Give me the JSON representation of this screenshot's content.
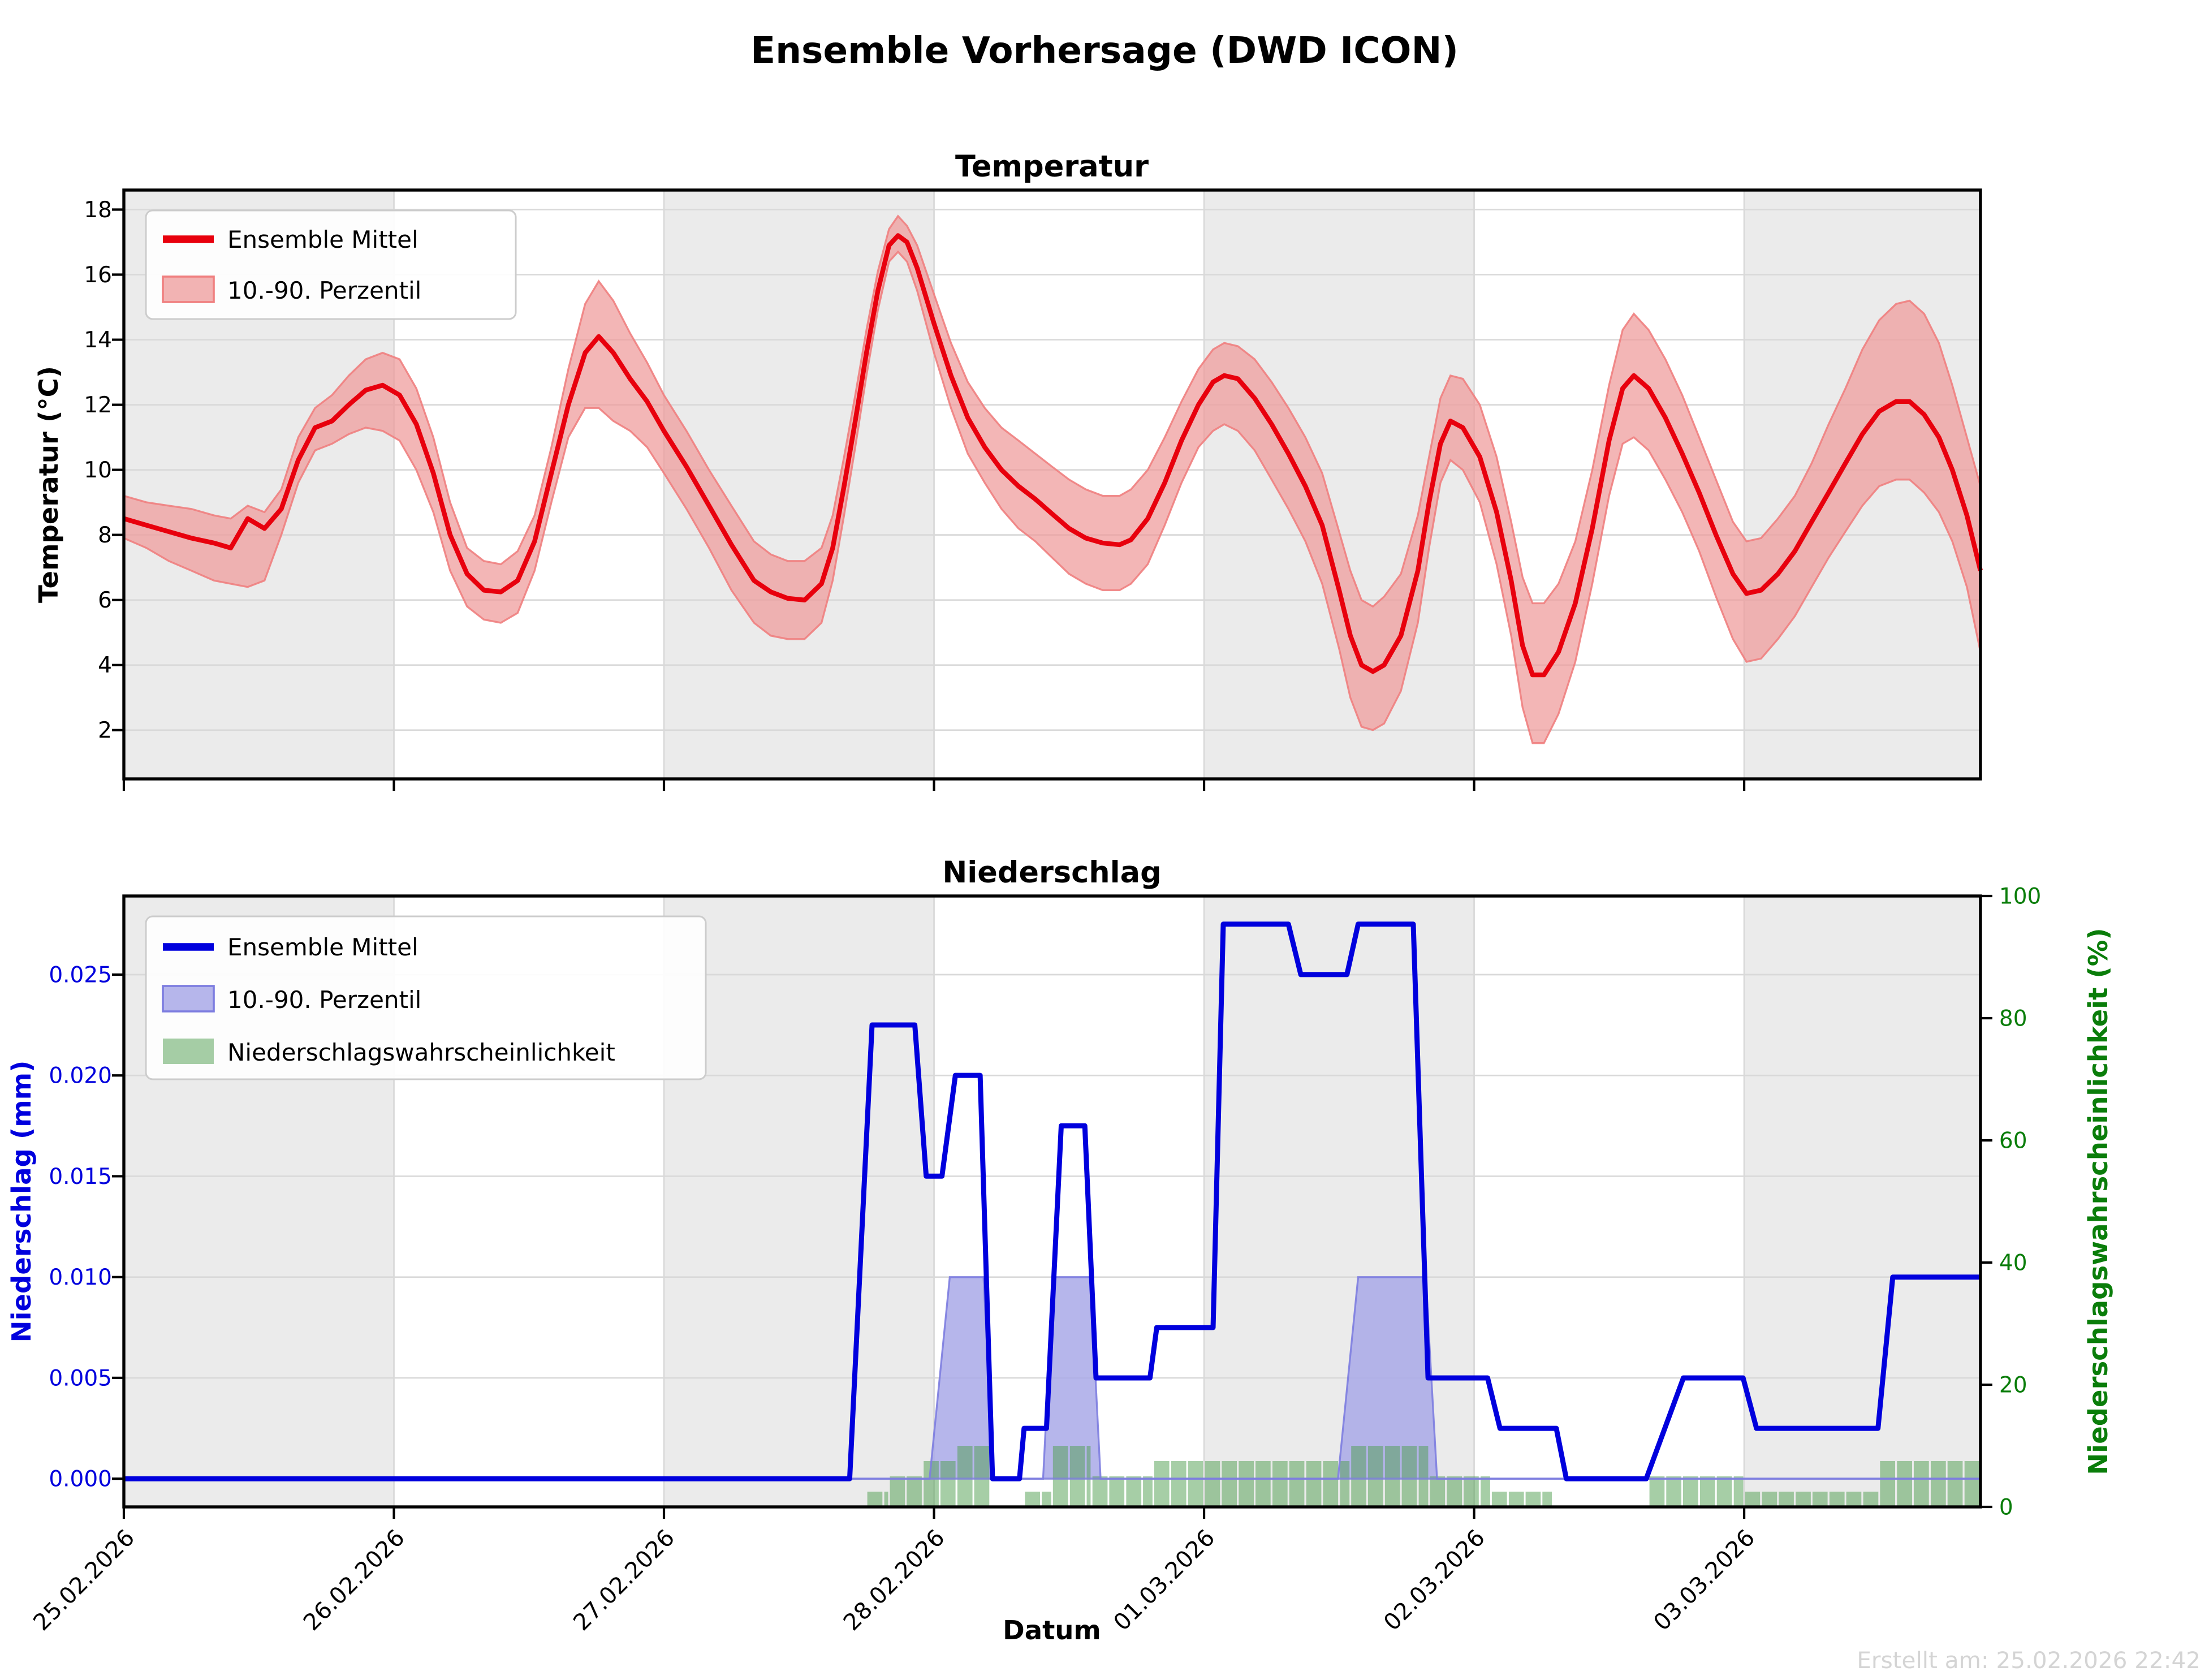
{
  "page_title": "Ensemble Vorhersage (DWD ICON)",
  "footer_note": "Erstellt am: 25.02.2026 22:42",
  "x_axis": {
    "label": "Datum",
    "tick_labels": [
      "25.02.2026",
      "26.02.2026",
      "27.02.2026",
      "28.02.2026",
      "01.03.2026",
      "02.03.2026",
      "03.03.2026"
    ],
    "hours_total": 165,
    "hours_per_day": 24,
    "shaded_day_indices": [
      0,
      2,
      4,
      6
    ],
    "shade_color": "#ebebeb",
    "grid_color": "#d9d9d9"
  },
  "chart_data": [
    {
      "type": "line",
      "title": "Temperatur",
      "ylabel": "Temperatur (°C)",
      "yticks": [
        2,
        4,
        6,
        8,
        10,
        12,
        14,
        16,
        18
      ],
      "ylim": [
        0.5,
        18.6
      ],
      "legend": [
        "Ensemble Mittel",
        "10.-90. Perzentil"
      ],
      "colors": {
        "line": "#e8000d",
        "band": "#ee9a9a",
        "band_edge": "#f08080"
      },
      "points": [
        [
          0,
          8.5,
          7.9,
          9.2
        ],
        [
          2,
          8.3,
          7.6,
          9.0
        ],
        [
          4,
          8.1,
          7.2,
          8.9
        ],
        [
          6,
          7.9,
          6.9,
          8.8
        ],
        [
          8,
          7.75,
          6.6,
          8.6
        ],
        [
          9.5,
          7.6,
          6.5,
          8.5
        ],
        [
          11,
          8.5,
          6.4,
          8.9
        ],
        [
          12.5,
          8.2,
          6.6,
          8.7
        ],
        [
          14,
          8.8,
          8.0,
          9.4
        ],
        [
          15.5,
          10.3,
          9.6,
          11.0
        ],
        [
          17,
          11.3,
          10.6,
          11.9
        ],
        [
          18.5,
          11.5,
          10.8,
          12.3
        ],
        [
          20,
          12.0,
          11.1,
          12.9
        ],
        [
          21.5,
          12.45,
          11.3,
          13.4
        ],
        [
          23,
          12.6,
          11.2,
          13.6
        ],
        [
          24.5,
          12.3,
          10.9,
          13.4
        ],
        [
          26,
          11.4,
          10.0,
          12.5
        ],
        [
          27.5,
          9.9,
          8.7,
          11.0
        ],
        [
          29,
          8.0,
          6.9,
          9.0
        ],
        [
          30.5,
          6.8,
          5.8,
          7.6
        ],
        [
          32,
          6.3,
          5.4,
          7.2
        ],
        [
          33.5,
          6.25,
          5.3,
          7.1
        ],
        [
          35,
          6.6,
          5.6,
          7.5
        ],
        [
          36.5,
          7.8,
          6.9,
          8.6
        ],
        [
          38,
          9.9,
          9.0,
          10.7
        ],
        [
          39.5,
          12.0,
          11.0,
          13.1
        ],
        [
          41,
          13.6,
          11.9,
          15.1
        ],
        [
          42.2,
          14.1,
          11.9,
          15.8
        ],
        [
          43.5,
          13.6,
          11.5,
          15.2
        ],
        [
          45,
          12.8,
          11.2,
          14.2
        ],
        [
          46.5,
          12.1,
          10.7,
          13.3
        ],
        [
          48,
          11.2,
          9.9,
          12.3
        ],
        [
          50,
          10.1,
          8.8,
          11.2
        ],
        [
          52,
          8.9,
          7.6,
          10.0
        ],
        [
          54,
          7.7,
          6.3,
          8.9
        ],
        [
          56,
          6.6,
          5.3,
          7.8
        ],
        [
          57.5,
          6.25,
          4.9,
          7.4
        ],
        [
          59,
          6.05,
          4.8,
          7.2
        ],
        [
          60.5,
          6.0,
          4.8,
          7.2
        ],
        [
          62,
          6.5,
          5.3,
          7.6
        ],
        [
          63,
          7.6,
          6.6,
          8.6
        ],
        [
          64,
          9.5,
          8.6,
          10.4
        ],
        [
          65,
          11.5,
          10.7,
          12.3
        ],
        [
          66,
          13.6,
          12.9,
          14.3
        ],
        [
          67,
          15.5,
          14.9,
          16.1
        ],
        [
          68,
          16.9,
          16.4,
          17.4
        ],
        [
          68.8,
          17.2,
          16.7,
          17.8
        ],
        [
          69.6,
          17.0,
          16.4,
          17.5
        ],
        [
          70.5,
          16.2,
          15.5,
          16.9
        ],
        [
          72,
          14.5,
          13.6,
          15.4
        ],
        [
          73.5,
          12.9,
          11.9,
          13.9
        ],
        [
          75,
          11.6,
          10.5,
          12.7
        ],
        [
          76.5,
          10.7,
          9.6,
          11.9
        ],
        [
          78,
          10.0,
          8.8,
          11.3
        ],
        [
          79.5,
          9.5,
          8.2,
          10.9
        ],
        [
          81,
          9.1,
          7.8,
          10.5
        ],
        [
          82.5,
          8.65,
          7.3,
          10.1
        ],
        [
          84,
          8.2,
          6.8,
          9.7
        ],
        [
          85.5,
          7.9,
          6.5,
          9.4
        ],
        [
          87,
          7.75,
          6.3,
          9.2
        ],
        [
          88.5,
          7.7,
          6.3,
          9.2
        ],
        [
          89.5,
          7.85,
          6.5,
          9.4
        ],
        [
          91,
          8.5,
          7.1,
          10.0
        ],
        [
          92.5,
          9.6,
          8.3,
          11.0
        ],
        [
          94,
          10.9,
          9.6,
          12.1
        ],
        [
          95.5,
          12.0,
          10.7,
          13.1
        ],
        [
          96.8,
          12.7,
          11.2,
          13.7
        ],
        [
          97.8,
          12.9,
          11.4,
          13.9
        ],
        [
          99,
          12.8,
          11.2,
          13.8
        ],
        [
          100.5,
          12.2,
          10.6,
          13.4
        ],
        [
          102,
          11.4,
          9.7,
          12.7
        ],
        [
          103.5,
          10.5,
          8.8,
          11.9
        ],
        [
          105,
          9.5,
          7.8,
          11.0
        ],
        [
          106.5,
          8.3,
          6.5,
          9.9
        ],
        [
          108,
          6.3,
          4.5,
          8.1
        ],
        [
          109,
          4.9,
          3.0,
          6.9
        ],
        [
          110,
          4.0,
          2.1,
          6.0
        ],
        [
          111,
          3.8,
          2.0,
          5.8
        ],
        [
          112,
          4.0,
          2.2,
          6.1
        ],
        [
          113.5,
          4.9,
          3.2,
          6.8
        ],
        [
          115,
          6.9,
          5.3,
          8.6
        ],
        [
          116,
          9.0,
          7.6,
          10.4
        ],
        [
          117,
          10.8,
          9.6,
          12.2
        ],
        [
          117.9,
          11.5,
          10.3,
          12.9
        ],
        [
          119,
          11.3,
          10.0,
          12.8
        ],
        [
          120.5,
          10.4,
          9.0,
          12.0
        ],
        [
          122,
          8.7,
          7.1,
          10.4
        ],
        [
          123.3,
          6.6,
          4.9,
          8.4
        ],
        [
          124.3,
          4.6,
          2.7,
          6.7
        ],
        [
          125.2,
          3.7,
          1.6,
          5.9
        ],
        [
          126.2,
          3.7,
          1.6,
          5.9
        ],
        [
          127.5,
          4.4,
          2.5,
          6.5
        ],
        [
          129,
          5.9,
          4.1,
          7.8
        ],
        [
          130.5,
          8.2,
          6.5,
          10.0
        ],
        [
          132,
          10.9,
          9.2,
          12.6
        ],
        [
          133.2,
          12.5,
          10.8,
          14.3
        ],
        [
          134.2,
          12.9,
          11.0,
          14.8
        ],
        [
          135.5,
          12.5,
          10.6,
          14.3
        ],
        [
          137,
          11.6,
          9.7,
          13.4
        ],
        [
          138.5,
          10.5,
          8.7,
          12.3
        ],
        [
          140,
          9.3,
          7.5,
          11.0
        ],
        [
          141.5,
          8.0,
          6.1,
          9.7
        ],
        [
          143,
          6.8,
          4.8,
          8.4
        ],
        [
          144.2,
          6.2,
          4.1,
          7.8
        ],
        [
          145.5,
          6.3,
          4.2,
          7.9
        ],
        [
          147,
          6.8,
          4.8,
          8.5
        ],
        [
          148.5,
          7.5,
          5.5,
          9.2
        ],
        [
          150,
          8.4,
          6.4,
          10.2
        ],
        [
          151.5,
          9.3,
          7.3,
          11.4
        ],
        [
          153,
          10.2,
          8.1,
          12.5
        ],
        [
          154.5,
          11.1,
          8.9,
          13.7
        ],
        [
          156,
          11.8,
          9.5,
          14.6
        ],
        [
          157.5,
          12.1,
          9.7,
          15.1
        ],
        [
          158.7,
          12.1,
          9.7,
          15.2
        ],
        [
          160,
          11.7,
          9.3,
          14.8
        ],
        [
          161.3,
          11.0,
          8.7,
          13.9
        ],
        [
          162.5,
          10.0,
          7.8,
          12.6
        ],
        [
          163.8,
          8.6,
          6.4,
          11.0
        ],
        [
          165,
          6.9,
          4.4,
          9.5
        ]
      ]
    },
    {
      "type": "line+bar",
      "title": "Niederschlag",
      "ylabel_left": "Niederschlag (mm)",
      "ylabel_right": "Niederschlagswahrscheinlichkeit (%)",
      "yticks_left_labels": [
        "0.000",
        "0.005",
        "0.010",
        "0.015",
        "0.020",
        "0.025"
      ],
      "yticks_left_values": [
        0,
        0.005,
        0.01,
        0.015,
        0.02,
        0.025
      ],
      "yticks_right": [
        0,
        20,
        40,
        60,
        80,
        100
      ],
      "ylim_left": [
        -0.0014,
        0.0289
      ],
      "ylim_right": [
        0,
        100
      ],
      "legend": [
        "Ensemble Mittel",
        "10.-90. Perzentil",
        "Niederschlagswahrscheinlichkeit"
      ],
      "colors": {
        "line": "#0000dd",
        "band": "#a9a9e8",
        "band_edge": "#7d7de0",
        "bars": "#4e9e4e"
      },
      "mean_points": [
        [
          0,
          0
        ],
        [
          64.5,
          0
        ],
        [
          66.5,
          0.0225
        ],
        [
          70.3,
          0.0225
        ],
        [
          71.3,
          0.015
        ],
        [
          72.7,
          0.015
        ],
        [
          73.9,
          0.02
        ],
        [
          76.1,
          0.02
        ],
        [
          77.2,
          0
        ],
        [
          79.6,
          0
        ],
        [
          80,
          0.0025
        ],
        [
          82,
          0.0025
        ],
        [
          83.3,
          0.0175
        ],
        [
          85.4,
          0.0175
        ],
        [
          86.4,
          0.005
        ],
        [
          91.2,
          0.005
        ],
        [
          91.8,
          0.0075
        ],
        [
          96.8,
          0.0075
        ],
        [
          97.7,
          0.0275
        ],
        [
          103.5,
          0.0275
        ],
        [
          104.6,
          0.025
        ],
        [
          108.7,
          0.025
        ],
        [
          109.7,
          0.0275
        ],
        [
          114.6,
          0.0275
        ],
        [
          115.9,
          0.005
        ],
        [
          121.2,
          0.005
        ],
        [
          122.3,
          0.0025
        ],
        [
          127.3,
          0.0025
        ],
        [
          128.2,
          0
        ],
        [
          135.3,
          0
        ],
        [
          138.6,
          0.005
        ],
        [
          143.9,
          0.005
        ],
        [
          145.1,
          0.0025
        ],
        [
          155.9,
          0.0025
        ],
        [
          157.2,
          0.01
        ],
        [
          165,
          0.01
        ]
      ],
      "band_upper_points": [
        [
          0,
          0
        ],
        [
          71.6,
          0
        ],
        [
          73.4,
          0.01
        ],
        [
          76.4,
          0.01
        ],
        [
          77.3,
          0
        ],
        [
          81.7,
          0
        ],
        [
          82.6,
          0.01
        ],
        [
          85.9,
          0.01
        ],
        [
          86.8,
          0
        ],
        [
          107.9,
          0
        ],
        [
          109.7,
          0.01
        ],
        [
          115.7,
          0.01
        ],
        [
          116.7,
          0
        ],
        [
          165,
          0
        ]
      ],
      "band_lower_value": 0,
      "bar_width_hours": 1.5,
      "prob_runs": [
        [
          66,
          68,
          2.5
        ],
        [
          68,
          71,
          5
        ],
        [
          71,
          74,
          7.5
        ],
        [
          74,
          77,
          10
        ],
        [
          80,
          82.5,
          2.5
        ],
        [
          82.5,
          86,
          10
        ],
        [
          86,
          91.5,
          5
        ],
        [
          91.5,
          109,
          7.5
        ],
        [
          109,
          116,
          10
        ],
        [
          116,
          121.5,
          5
        ],
        [
          121.5,
          127,
          2.5
        ],
        [
          135.5,
          144,
          5
        ],
        [
          144,
          156,
          2.5
        ],
        [
          156,
          165,
          7.5
        ]
      ]
    }
  ]
}
